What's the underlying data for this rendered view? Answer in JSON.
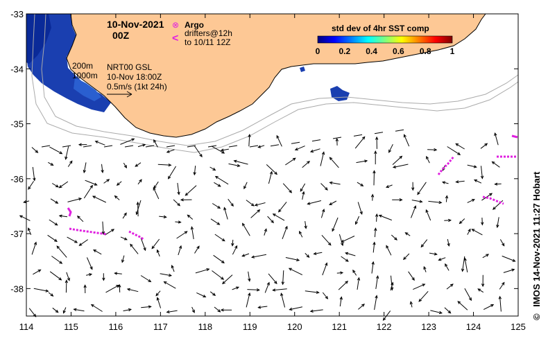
{
  "map": {
    "lon_ticks": [
      "114",
      "115",
      "116",
      "117",
      "118",
      "119",
      "120",
      "121",
      "122",
      "123",
      "124",
      "125"
    ],
    "lat_ticks": [
      "-33",
      "-34",
      "-35",
      "-36",
      "-37",
      "-38"
    ],
    "lon_range": [
      114,
      125
    ],
    "lat_range": [
      -38.5,
      -33
    ]
  },
  "header": {
    "date": "10-Nov-2021",
    "time": "00Z"
  },
  "legend": {
    "argo_label": "Argo",
    "argo_symbol": "⊗",
    "drifter_symbol": "<",
    "drifters_line1": "drifters@12h",
    "drifters_line2": "to 10/11 12Z"
  },
  "colorbar": {
    "title": "std dev of 4hr SST comp",
    "ticks": [
      "0",
      "0.2",
      "0.4",
      "0.6",
      "0.8",
      "1"
    ],
    "colors": [
      "#00007f",
      "#0000ff",
      "#007fff",
      "#00ffff",
      "#7fff7f",
      "#ffff00",
      "#ff7f00",
      "#ff0000",
      "#7f0000"
    ]
  },
  "depth_labels": {
    "d200": "200m",
    "d1000": "1000m"
  },
  "product": {
    "line1": "NRT00 GSL",
    "line2": "10-Nov 18:00Z",
    "line3": "0.5m/s (1kt 24h)"
  },
  "credit": {
    "copyright_symbol": "©",
    "text": "IMOS 14-Nov-2021 11:27 Hobart"
  },
  "colors": {
    "land": "#fdc895",
    "sst_patch": "#1a3fb0",
    "drifter": "#e020e0",
    "isobath": "#aaaaaa"
  }
}
